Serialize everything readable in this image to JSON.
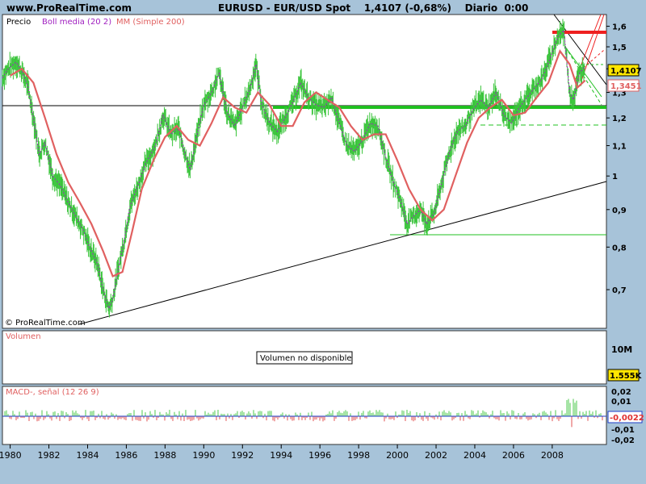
{
  "header": {
    "brand": "www.ProRealTime.com",
    "title": "EURUSD - EUR/USD Spot    1,4107 (-0,68%)    Diario  0:00"
  },
  "price_panel": {
    "label": "Precio",
    "legend": [
      {
        "text": "Boll media (20 2)",
        "color": "#a020c0"
      },
      {
        "text": "MM (Simple 200)",
        "color": "#e06060"
      }
    ],
    "watermark": "© ProRealTime.com",
    "last_price_badge": "1,4107",
    "ma_badge": "1,3451"
  },
  "volume_panel": {
    "label": "Volumen",
    "message": "Volumen no disponible",
    "axis_label": "10M",
    "value_badge": "1.555K"
  },
  "macd_panel": {
    "label": "MACD-, señal (12 26 9)",
    "value_badge": "-0,0022"
  },
  "colors": {
    "background": "#a7c3d9",
    "panel": "#ffffff",
    "candle": "#39c43a",
    "boll": "#a020c0",
    "ma200": "#e06060",
    "support": "#20c020",
    "resistance": "#ee2020"
  },
  "chart_data": {
    "type": "line",
    "title": "EURUSD - EUR/USD Spot",
    "x_ticks": [
      "1980",
      "1982",
      "1984",
      "1986",
      "1988",
      "1990",
      "1992",
      "1994",
      "1996",
      "1998",
      "2000",
      "2002",
      "2004",
      "2006",
      "2008"
    ],
    "y_ticks": [
      "1,6",
      "1,5",
      "1,4",
      "1,3",
      "1,2",
      "1,1",
      "1",
      "0,9",
      "0,8",
      "0,7"
    ],
    "y_scale": "log",
    "ylim": [
      0.62,
      1.66
    ],
    "xlim": [
      1979.6,
      2010.8
    ],
    "series": [
      {
        "name": "EURUSD",
        "x": [
          1979.6,
          1979.9,
          1980.3,
          1980.6,
          1980.9,
          1981.2,
          1981.5,
          1981.8,
          1982.2,
          1982.6,
          1983.0,
          1983.4,
          1983.8,
          1984.1,
          1984.5,
          1984.8,
          1985.1,
          1985.3,
          1985.6,
          1985.9,
          1986.2,
          1986.6,
          1987.0,
          1987.5,
          1987.9,
          1988.3,
          1988.7,
          1989.0,
          1989.3,
          1989.6,
          1990.0,
          1990.4,
          1990.8,
          1991.2,
          1991.6,
          1992.0,
          1992.4,
          1992.7,
          1993.0,
          1993.4,
          1993.8,
          1994.2,
          1994.6,
          1995.0,
          1995.4,
          1995.8,
          1996.2,
          1996.6,
          1997.0,
          1997.4,
          1997.8,
          1998.2,
          1998.6,
          1999.0,
          1999.4,
          1999.8,
          2000.2,
          2000.5,
          2000.8,
          2001.2,
          2001.5,
          2001.9,
          2002.3,
          2002.7,
          2003.1,
          2003.5,
          2003.9,
          2004.3,
          2004.7,
          2005.1,
          2005.5,
          2005.9,
          2006.3,
          2006.7,
          2007.1,
          2007.5,
          2007.9,
          2008.3,
          2008.6,
          2008.9,
          2009.1,
          2009.4,
          2009.7
        ],
        "values": [
          1.36,
          1.4,
          1.43,
          1.39,
          1.33,
          1.2,
          1.07,
          1.11,
          1.0,
          0.97,
          0.92,
          0.88,
          0.84,
          0.8,
          0.76,
          0.7,
          0.66,
          0.68,
          0.75,
          0.82,
          0.91,
          0.97,
          1.04,
          1.1,
          1.21,
          1.14,
          1.16,
          1.08,
          1.02,
          1.12,
          1.25,
          1.3,
          1.38,
          1.22,
          1.17,
          1.24,
          1.32,
          1.42,
          1.25,
          1.18,
          1.15,
          1.2,
          1.26,
          1.34,
          1.28,
          1.25,
          1.24,
          1.28,
          1.18,
          1.1,
          1.08,
          1.12,
          1.18,
          1.17,
          1.06,
          0.98,
          0.92,
          0.86,
          0.88,
          0.9,
          0.86,
          0.89,
          0.98,
          1.08,
          1.15,
          1.17,
          1.23,
          1.27,
          1.24,
          1.3,
          1.21,
          1.18,
          1.24,
          1.28,
          1.32,
          1.36,
          1.45,
          1.55,
          1.58,
          1.3,
          1.27,
          1.38,
          1.41
        ]
      },
      {
        "name": "MM (Simple 200)",
        "x": [
          1980.0,
          1980.6,
          1981.2,
          1981.8,
          1982.4,
          1983.0,
          1983.6,
          1984.2,
          1984.8,
          1985.3,
          1985.8,
          1986.3,
          1986.8,
          1987.4,
          1988.0,
          1988.6,
          1989.2,
          1989.8,
          1990.4,
          1991.0,
          1991.6,
          1992.2,
          1992.8,
          1993.4,
          1994.0,
          1994.6,
          1995.2,
          1995.8,
          1996.4,
          1997.0,
          1997.6,
          1998.2,
          1998.8,
          1999.4,
          2000.0,
          2000.6,
          2001.2,
          2001.8,
          2002.4,
          2003.0,
          2003.6,
          2004.2,
          2004.8,
          2005.4,
          2006.0,
          2006.6,
          2007.2,
          2007.8,
          2008.4,
          2008.9,
          2009.3,
          2009.7
        ],
        "values": [
          1.37,
          1.4,
          1.34,
          1.2,
          1.07,
          0.98,
          0.92,
          0.86,
          0.79,
          0.73,
          0.74,
          0.84,
          0.96,
          1.05,
          1.13,
          1.17,
          1.12,
          1.1,
          1.18,
          1.28,
          1.24,
          1.22,
          1.3,
          1.25,
          1.17,
          1.17,
          1.26,
          1.3,
          1.27,
          1.24,
          1.17,
          1.12,
          1.14,
          1.14,
          1.05,
          0.96,
          0.9,
          0.87,
          0.9,
          1.0,
          1.11,
          1.2,
          1.24,
          1.27,
          1.21,
          1.22,
          1.28,
          1.34,
          1.48,
          1.42,
          1.32,
          1.35
        ]
      }
    ]
  }
}
